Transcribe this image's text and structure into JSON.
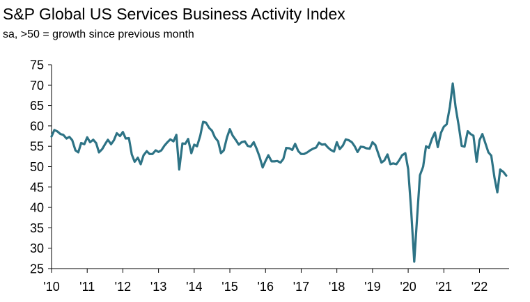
{
  "chart_data": {
    "type": "line",
    "title": "S&P Global US Services Business Activity Index",
    "subtitle": "sa, >50 = growth since previous month",
    "xlabel": "",
    "ylabel": "",
    "ylim": [
      25,
      75
    ],
    "yticks": [
      25,
      30,
      35,
      40,
      45,
      50,
      55,
      60,
      65,
      70,
      75
    ],
    "xticks": [
      {
        "label": "'10",
        "year": 2010
      },
      {
        "label": "'11",
        "year": 2011
      },
      {
        "label": "'12",
        "year": 2012
      },
      {
        "label": "'13",
        "year": 2013
      },
      {
        "label": "'14",
        "year": 2014
      },
      {
        "label": "'15",
        "year": 2015
      },
      {
        "label": "'16",
        "year": 2016
      },
      {
        "label": "'17",
        "year": 2017
      },
      {
        "label": "'18",
        "year": 2018
      },
      {
        "label": "'19",
        "year": 2019
      },
      {
        "label": "'20",
        "year": 2020
      },
      {
        "label": "'21",
        "year": 2021
      },
      {
        "label": "'22",
        "year": 2022
      }
    ],
    "x_start_year": 2010,
    "x_end_year": 2022.83,
    "grid": false,
    "line_color": "#2d7385",
    "series": [
      {
        "name": "Business Activity Index",
        "points": [
          [
            2010.0,
            57.4
          ],
          [
            2010.08,
            59.0
          ],
          [
            2010.17,
            58.6
          ],
          [
            2010.25,
            58.0
          ],
          [
            2010.33,
            57.8
          ],
          [
            2010.42,
            56.9
          ],
          [
            2010.5,
            57.3
          ],
          [
            2010.58,
            56.5
          ],
          [
            2010.67,
            54.0
          ],
          [
            2010.75,
            53.5
          ],
          [
            2010.83,
            55.8
          ],
          [
            2010.92,
            55.5
          ],
          [
            2011.0,
            57.2
          ],
          [
            2011.08,
            56.0
          ],
          [
            2011.17,
            56.6
          ],
          [
            2011.25,
            55.8
          ],
          [
            2011.33,
            53.5
          ],
          [
            2011.42,
            54.3
          ],
          [
            2011.5,
            55.5
          ],
          [
            2011.58,
            56.6
          ],
          [
            2011.67,
            55.5
          ],
          [
            2011.75,
            56.5
          ],
          [
            2011.83,
            58.2
          ],
          [
            2011.92,
            57.5
          ],
          [
            2012.0,
            58.5
          ],
          [
            2012.08,
            56.9
          ],
          [
            2012.17,
            57.0
          ],
          [
            2012.25,
            53.0
          ],
          [
            2012.33,
            51.2
          ],
          [
            2012.42,
            52.2
          ],
          [
            2012.5,
            50.6
          ],
          [
            2012.58,
            52.8
          ],
          [
            2012.67,
            53.8
          ],
          [
            2012.75,
            53.1
          ],
          [
            2012.83,
            53.1
          ],
          [
            2012.92,
            54.0
          ],
          [
            2013.0,
            53.6
          ],
          [
            2013.08,
            54.0
          ],
          [
            2013.17,
            55.2
          ],
          [
            2013.25,
            56.0
          ],
          [
            2013.33,
            56.7
          ],
          [
            2013.42,
            56.2
          ],
          [
            2013.5,
            57.8
          ],
          [
            2013.58,
            49.3
          ],
          [
            2013.67,
            55.7
          ],
          [
            2013.75,
            55.6
          ],
          [
            2013.83,
            56.8
          ],
          [
            2013.92,
            53.3
          ],
          [
            2014.0,
            55.4
          ],
          [
            2014.08,
            55.0
          ],
          [
            2014.17,
            57.6
          ],
          [
            2014.25,
            61.0
          ],
          [
            2014.33,
            60.8
          ],
          [
            2014.42,
            59.5
          ],
          [
            2014.5,
            58.8
          ],
          [
            2014.58,
            57.2
          ],
          [
            2014.67,
            56.2
          ],
          [
            2014.75,
            53.3
          ],
          [
            2014.83,
            54.0
          ],
          [
            2014.92,
            57.2
          ],
          [
            2015.0,
            59.2
          ],
          [
            2015.08,
            57.6
          ],
          [
            2015.17,
            56.5
          ],
          [
            2015.25,
            55.4
          ],
          [
            2015.33,
            56.0
          ],
          [
            2015.42,
            56.2
          ],
          [
            2015.5,
            55.1
          ],
          [
            2015.58,
            54.9
          ],
          [
            2015.67,
            56.0
          ],
          [
            2015.75,
            54.4
          ],
          [
            2015.83,
            52.5
          ],
          [
            2015.92,
            49.8
          ],
          [
            2016.0,
            51.4
          ],
          [
            2016.08,
            52.8
          ],
          [
            2016.17,
            51.3
          ],
          [
            2016.25,
            51.3
          ],
          [
            2016.33,
            51.4
          ],
          [
            2016.42,
            51.0
          ],
          [
            2016.5,
            51.9
          ],
          [
            2016.58,
            54.6
          ],
          [
            2016.67,
            54.5
          ],
          [
            2016.75,
            54.1
          ],
          [
            2016.83,
            55.6
          ],
          [
            2016.92,
            53.8
          ],
          [
            2017.0,
            53.1
          ],
          [
            2017.08,
            53.1
          ],
          [
            2017.17,
            53.5
          ],
          [
            2017.25,
            54.0
          ],
          [
            2017.33,
            54.4
          ],
          [
            2017.42,
            54.7
          ],
          [
            2017.5,
            55.9
          ],
          [
            2017.58,
            55.4
          ],
          [
            2017.67,
            55.5
          ],
          [
            2017.75,
            54.7
          ],
          [
            2017.83,
            54.1
          ],
          [
            2017.92,
            53.7
          ],
          [
            2018.0,
            56.0
          ],
          [
            2018.08,
            54.3
          ],
          [
            2018.17,
            55.2
          ],
          [
            2018.25,
            56.7
          ],
          [
            2018.33,
            56.5
          ],
          [
            2018.42,
            56.0
          ],
          [
            2018.5,
            55.0
          ],
          [
            2018.58,
            53.6
          ],
          [
            2018.67,
            54.9
          ],
          [
            2018.75,
            54.8
          ],
          [
            2018.83,
            54.5
          ],
          [
            2018.92,
            54.4
          ],
          [
            2019.0,
            56.0
          ],
          [
            2019.08,
            55.3
          ],
          [
            2019.17,
            53.0
          ],
          [
            2019.25,
            51.0
          ],
          [
            2019.33,
            51.5
          ],
          [
            2019.42,
            53.0
          ],
          [
            2019.5,
            50.6
          ],
          [
            2019.58,
            50.8
          ],
          [
            2019.67,
            50.6
          ],
          [
            2019.75,
            51.6
          ],
          [
            2019.83,
            52.8
          ],
          [
            2019.92,
            53.3
          ],
          [
            2020.0,
            49.4
          ],
          [
            2020.08,
            39.8
          ],
          [
            2020.17,
            26.7
          ],
          [
            2020.25,
            37.5
          ],
          [
            2020.33,
            47.9
          ],
          [
            2020.42,
            50.0
          ],
          [
            2020.5,
            55.0
          ],
          [
            2020.58,
            54.6
          ],
          [
            2020.67,
            56.9
          ],
          [
            2020.75,
            58.4
          ],
          [
            2020.83,
            54.8
          ],
          [
            2020.92,
            58.3
          ],
          [
            2021.0,
            59.8
          ],
          [
            2021.08,
            60.4
          ],
          [
            2021.17,
            64.7
          ],
          [
            2021.25,
            70.4
          ],
          [
            2021.33,
            64.6
          ],
          [
            2021.42,
            59.9
          ],
          [
            2021.5,
            55.1
          ],
          [
            2021.58,
            54.9
          ],
          [
            2021.67,
            58.7
          ],
          [
            2021.75,
            58.0
          ],
          [
            2021.83,
            57.6
          ],
          [
            2021.92,
            51.2
          ],
          [
            2022.0,
            56.5
          ],
          [
            2022.08,
            58.0
          ],
          [
            2022.17,
            55.6
          ],
          [
            2022.25,
            53.5
          ],
          [
            2022.33,
            52.7
          ],
          [
            2022.42,
            47.3
          ],
          [
            2022.5,
            43.7
          ],
          [
            2022.58,
            49.3
          ],
          [
            2022.67,
            48.7
          ],
          [
            2022.75,
            47.8
          ]
        ]
      }
    ]
  }
}
